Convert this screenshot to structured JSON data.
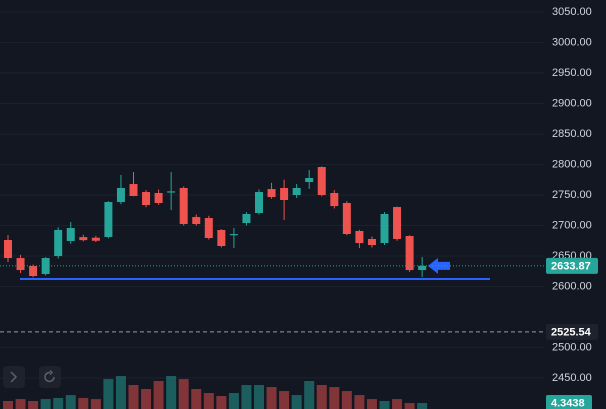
{
  "chart_data": {
    "type": "candlestick",
    "up_color": "#26a69a",
    "down_color": "#ef5350",
    "open": [
      2676.2,
      2646.7,
      2633.6,
      2620.5,
      2650.0,
      2674.6,
      2681,
      2680,
      2681.2,
      2738.5,
      2768,
      2754.9,
      2753.3,
      2754,
      2761.5,
      2713.9,
      2712.3,
      2692.7,
      2684,
      2704.1,
      2720.5,
      2759.8,
      2761.5,
      2750,
      2771.3,
      2795.9,
      2753.3,
      2736.9,
      2691,
      2677.9,
      2671.3,
      2730.3,
      2682.8,
      2627
    ],
    "high": [
      2684.5,
      2652,
      2636,
      2648,
      2697,
      2705.7,
      2685,
      2683,
      2740,
      2782.8,
      2787.7,
      2758,
      2759,
      2787.7,
      2764,
      2718,
      2716,
      2694,
      2695.9,
      2722,
      2759,
      2770,
      2775,
      2768,
      2791,
      2797,
      2758,
      2740,
      2693,
      2682,
      2722,
      2731,
      2684,
      2648.4
    ],
    "low": [
      2640.2,
      2622,
      2615,
      2618,
      2646,
      2670,
      2674,
      2673,
      2679,
      2735,
      2748,
      2730,
      2734,
      2725.4,
      2700,
      2700,
      2677,
      2664,
      2663.1,
      2700,
      2718,
      2744,
      2709,
      2745,
      2760,
      2748,
      2728,
      2684,
      2663,
      2664,
      2668,
      2675,
      2624,
      2615.6
    ],
    "close": [
      2646.7,
      2627,
      2617.2,
      2646.7,
      2692.7,
      2695.9,
      2676,
      2675,
      2738.5,
      2761.5,
      2748.4,
      2733.6,
      2736.9,
      2756,
      2702.5,
      2702.5,
      2679.5,
      2666.4,
      2686,
      2718.9,
      2754.9,
      2746.7,
      2741.8,
      2761.5,
      2777.9,
      2750,
      2731.9,
      2686.1,
      2671.3,
      2668,
      2718.9,
      2677.9,
      2627,
      2633.87
    ],
    "volume": [
      5.8,
      7.2,
      5.8,
      7.2,
      8.0,
      10.1,
      8.0,
      7.2,
      21.7,
      23.9,
      17.4,
      14.5,
      20.3,
      23.9,
      21.7,
      14.5,
      11.6,
      9.4,
      11.6,
      17.4,
      17.4,
      15.9,
      13.0,
      10.1,
      20.3,
      17.4,
      15.9,
      13.0,
      10.1,
      7.2,
      5.8,
      7.2,
      4.3,
      4.3438
    ],
    "ylim": [
      2399.2,
      3069.7
    ],
    "yticks": [
      {
        "value": 3050,
        "label": "3050.00"
      },
      {
        "value": 3000,
        "label": "3000.00"
      },
      {
        "value": 2950,
        "label": "2950.00"
      },
      {
        "value": 2900,
        "label": "2900.00"
      },
      {
        "value": 2850,
        "label": "2850.00"
      },
      {
        "value": 2800,
        "label": "2800.00"
      },
      {
        "value": 2750,
        "label": "2750.00"
      },
      {
        "value": 2700,
        "label": "2700.00"
      },
      {
        "value": 2650,
        "label": "2650.00"
      },
      {
        "value": 2600,
        "label": "2600.00"
      },
      {
        "value": 2500,
        "label": "2500.00"
      },
      {
        "value": 2450,
        "label": "2450.00"
      }
    ],
    "last_price": 2633.87,
    "marked_price": 2525.54,
    "support_line": 2612.3,
    "line_color": "#2962ff",
    "grid": true
  }
}
